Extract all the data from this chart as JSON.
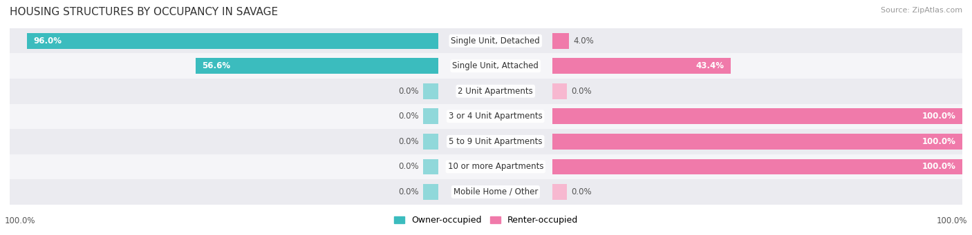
{
  "title": "HOUSING STRUCTURES BY OCCUPANCY IN SAVAGE",
  "source": "Source: ZipAtlas.com",
  "categories": [
    "Single Unit, Detached",
    "Single Unit, Attached",
    "2 Unit Apartments",
    "3 or 4 Unit Apartments",
    "5 to 9 Unit Apartments",
    "10 or more Apartments",
    "Mobile Home / Other"
  ],
  "owner_pct": [
    96.0,
    56.6,
    0.0,
    0.0,
    0.0,
    0.0,
    0.0
  ],
  "renter_pct": [
    4.0,
    43.4,
    0.0,
    100.0,
    100.0,
    100.0,
    0.0
  ],
  "owner_color": "#3bbcbe",
  "renter_color": "#f07aaa",
  "row_bg_even": "#ebebf0",
  "row_bg_odd": "#f5f5f8",
  "stub_owner_color": "#90d8da",
  "stub_renter_color": "#f7b8d0",
  "title_fontsize": 11,
  "pct_fontsize": 8.5,
  "label_fontsize": 8.5,
  "legend_fontsize": 9,
  "bar_height": 0.62,
  "figsize": [
    14.06,
    3.41
  ],
  "dpi": 100,
  "stub_size": 3.0,
  "zero_stub_owner": 3.5,
  "zero_stub_renter": 3.5
}
